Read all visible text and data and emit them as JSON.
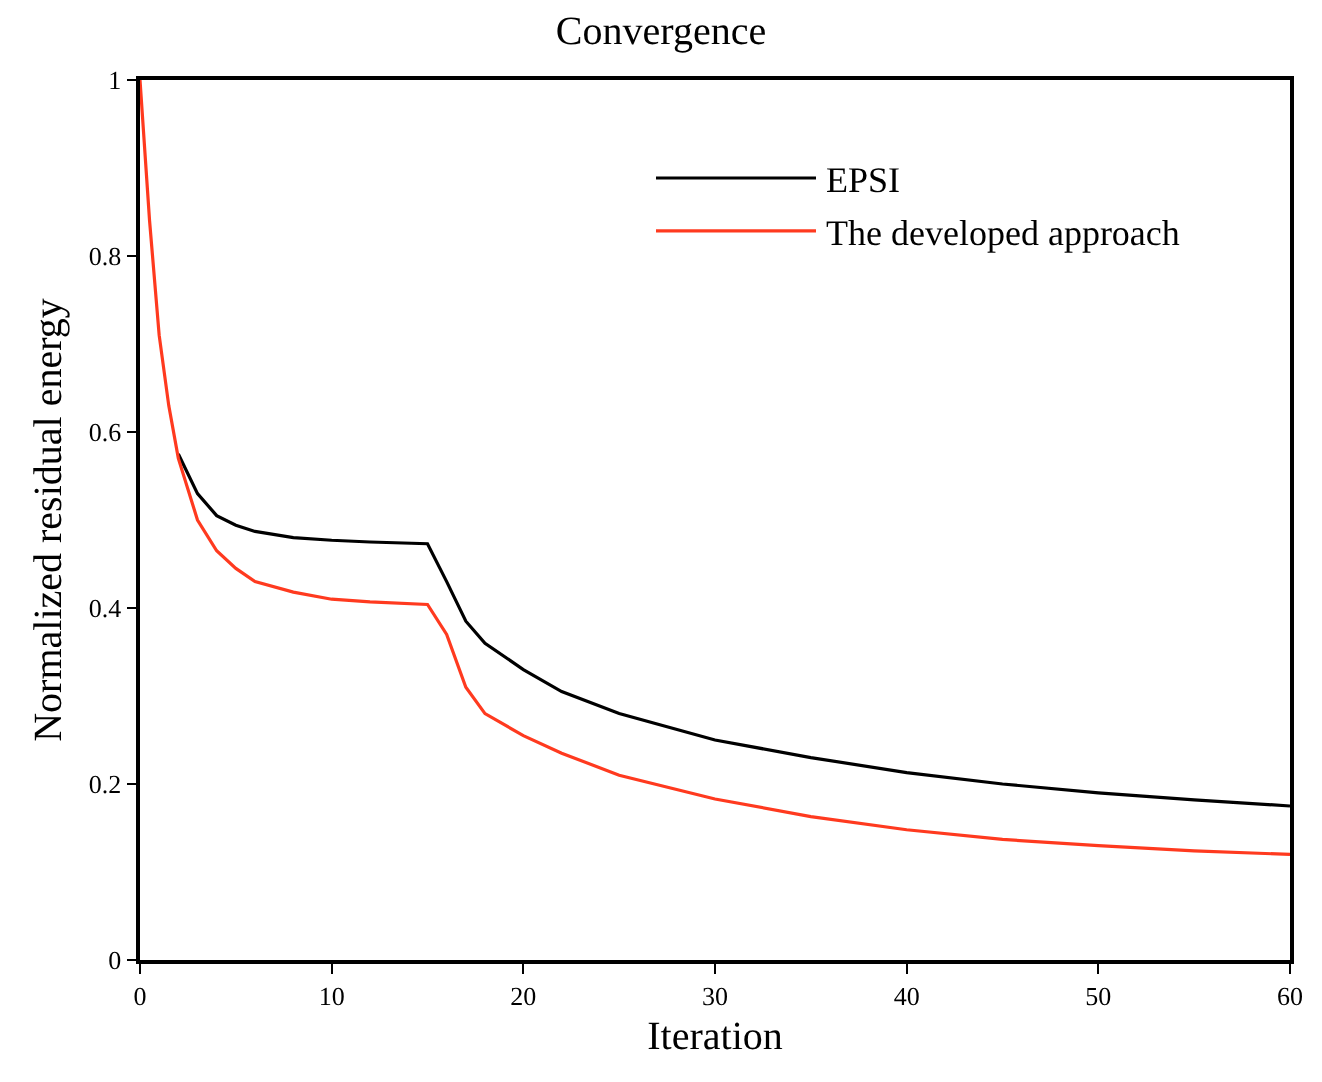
{
  "chart_data": {
    "type": "line",
    "title": "Convergence",
    "xlabel": "Iteration",
    "ylabel": "Normalized residual energy",
    "x": [
      0,
      0.5,
      1,
      1.5,
      2,
      3,
      4,
      5,
      6,
      8,
      10,
      12,
      15,
      16,
      17,
      18,
      20,
      22,
      25,
      30,
      35,
      40,
      45,
      50,
      55,
      60
    ],
    "series": [
      {
        "name": "EPSI",
        "color": "#000000",
        "values": [
          null,
          null,
          null,
          null,
          0.575,
          0.53,
          0.505,
          0.494,
          0.487,
          0.48,
          0.477,
          0.475,
          0.473,
          0.43,
          0.385,
          0.36,
          0.33,
          0.305,
          0.28,
          0.25,
          0.23,
          0.213,
          0.2,
          0.19,
          0.182,
          0.175
        ]
      },
      {
        "name": "The developed approach",
        "color": "#ff3a1f",
        "values": [
          1,
          0.84,
          0.71,
          0.63,
          0.57,
          0.5,
          0.465,
          0.445,
          0.43,
          0.418,
          0.41,
          0.407,
          0.404,
          0.37,
          0.31,
          0.28,
          0.255,
          0.235,
          0.21,
          0.183,
          0.163,
          0.148,
          0.137,
          0.13,
          0.124,
          0.12
        ]
      }
    ],
    "xlim": [
      0,
      60
    ],
    "xticks": [
      0,
      10,
      20,
      30,
      40,
      50,
      60
    ],
    "ylim": [
      0,
      1
    ],
    "yticks": [
      0,
      0.2,
      0.4,
      0.6,
      0.8,
      1
    ],
    "grid": false,
    "legend": "top right",
    "marker": "none",
    "line_style": "solid"
  }
}
